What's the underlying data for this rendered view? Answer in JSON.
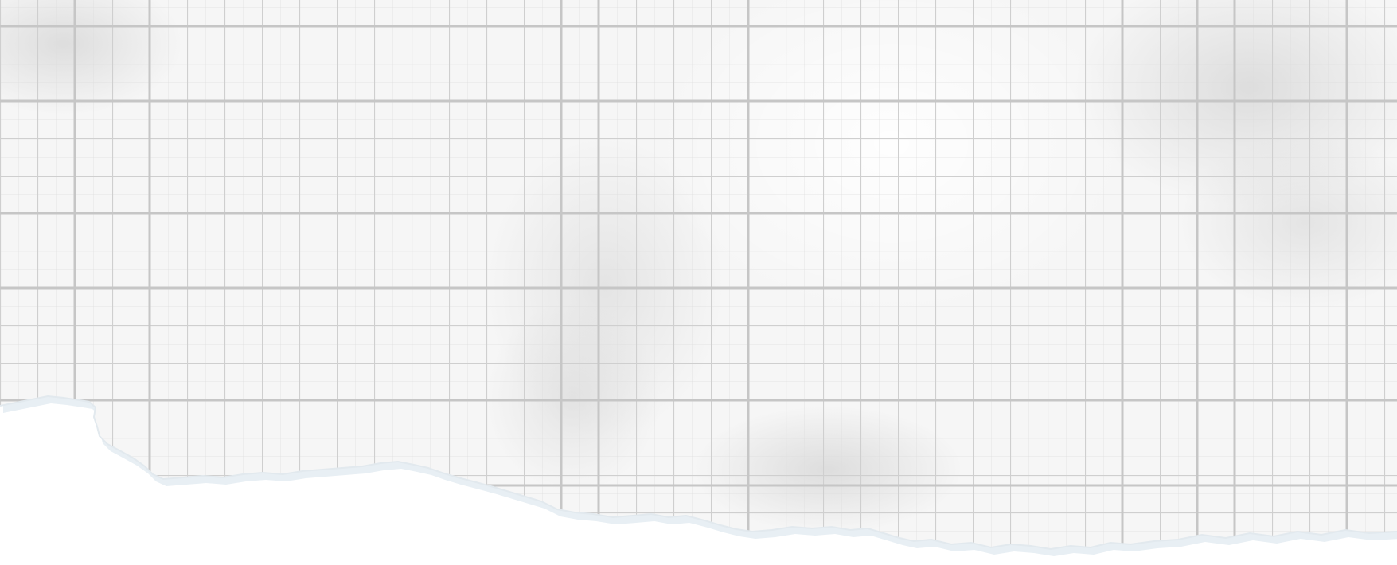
{
  "background": {
    "page_color": "#ffffff",
    "paper_color": "#f6f6f6",
    "grid_line_color": "#cfcfcf",
    "shadow_color": "#e6eef3",
    "texture": "graph-paper",
    "edge": "torn"
  }
}
